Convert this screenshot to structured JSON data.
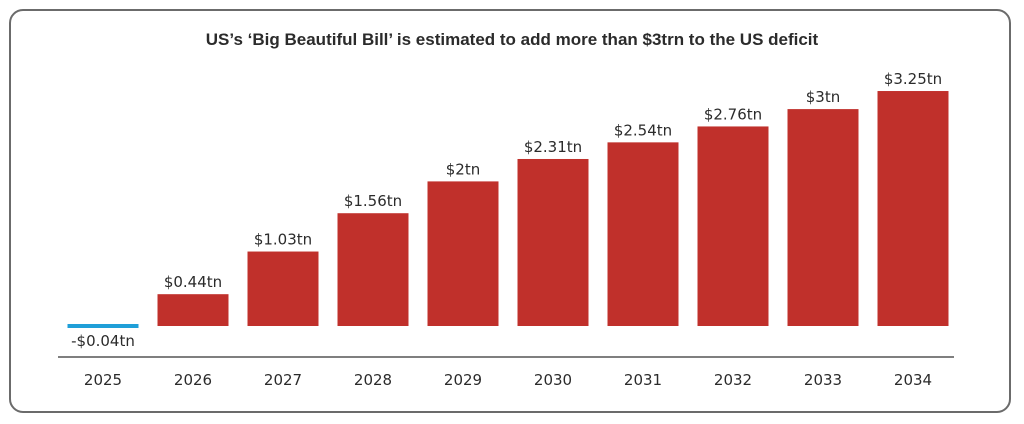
{
  "chart_data": {
    "type": "bar",
    "title": "US’s ‘Big Beautiful Bill’ is estimated to add more than $3trn to the US deficit",
    "categories": [
      "2025",
      "2026",
      "2027",
      "2028",
      "2029",
      "2030",
      "2031",
      "2032",
      "2033",
      "2034"
    ],
    "values": [
      -0.04,
      0.44,
      1.03,
      1.56,
      2.0,
      2.31,
      2.54,
      2.76,
      3.0,
      3.25
    ],
    "data_labels": [
      "-$0.04tn",
      "$0.44tn",
      "$1.03tn",
      "$1.56tn",
      "$2tn",
      "$2.31tn",
      "$2.54tn",
      "$2.76tn",
      "$3tn",
      "$3.25tn"
    ],
    "unit": "trillion USD",
    "ylim": [
      -0.1,
      3.5
    ],
    "grid": false,
    "legend": "none",
    "colors": {
      "positive": "#c0302b",
      "negative": "#1f9fd8",
      "axis": "#555555",
      "frame": "#6b6b6b",
      "text": "#2b2b2b"
    }
  }
}
